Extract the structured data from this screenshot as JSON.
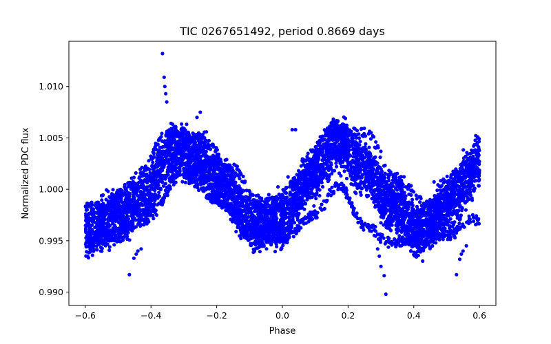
{
  "chart_data": {
    "type": "scatter",
    "title": "TIC 0267651492, period 0.8669 days",
    "xlabel": "Phase",
    "ylabel": "Normalized PDC flux",
    "xlim": [
      -0.65,
      0.65
    ],
    "ylim": [
      0.9887,
      1.0144
    ],
    "xticks": [
      -0.6,
      -0.4,
      -0.2,
      0.0,
      0.2,
      0.4,
      0.6
    ],
    "xtick_labels": [
      "−0.6",
      "−0.4",
      "−0.2",
      "0.0",
      "0.2",
      "0.4",
      "0.6"
    ],
    "yticks": [
      0.99,
      0.995,
      1.0,
      1.005,
      1.01
    ],
    "ytick_labels": [
      "0.990",
      "0.995",
      "1.000",
      "1.005",
      "1.010"
    ],
    "grid": false,
    "marker_color": "#0000ff",
    "series": [
      {
        "name": "main band",
        "center": {
          "x": [
            -0.6,
            -0.5,
            -0.42,
            -0.33,
            -0.25,
            -0.18,
            -0.09,
            0.0,
            0.08,
            0.17,
            0.25,
            0.33,
            0.42,
            0.5,
            0.6
          ],
          "y": [
            0.996,
            0.9972,
            0.9995,
            1.0038,
            1.003,
            1.0003,
            0.9967,
            0.997,
            1.0012,
            1.0045,
            1.0018,
            0.9985,
            0.996,
            0.9985,
            1.0025
          ]
        },
        "spread": 0.0042,
        "count": 5500
      },
      {
        "name": "lower branch",
        "center": {
          "x": [
            -0.6,
            -0.5,
            -0.42,
            -0.3,
            -0.2,
            -0.09,
            0.0,
            0.1,
            0.17,
            0.25,
            0.33,
            0.42,
            0.5,
            0.58
          ],
          "y": [
            0.9952,
            0.9957,
            0.997,
            1.0015,
            0.999,
            0.9955,
            0.9952,
            0.9975,
            1.0005,
            0.9965,
            0.9948,
            0.995,
            0.9955,
            0.997
          ]
        },
        "spread": 0.0008,
        "count": 700
      },
      {
        "name": "upper branch",
        "center": {
          "x": [
            -0.55,
            -0.45,
            -0.35,
            -0.25,
            -0.15,
            -0.05,
            0.05,
            0.15,
            0.25,
            0.35,
            0.45,
            0.55
          ],
          "y": [
            0.9985,
            1.0005,
            1.0055,
            1.005,
            1.002,
            0.998,
            1.001,
            1.006,
            1.0055,
            1.001,
            0.9985,
            1.002
          ]
        },
        "spread": 0.0008,
        "count": 500
      },
      {
        "name": "outliers",
        "x": [
          -0.365,
          -0.36,
          -0.358,
          -0.355,
          -0.352,
          -0.466,
          -0.44,
          -0.445,
          -0.452,
          -0.43,
          0.315,
          0.3,
          0.31,
          0.295,
          0.29,
          0.53,
          0.54,
          0.545,
          0.55,
          0.56,
          -0.25,
          -0.26,
          0.03,
          0.04,
          0.27,
          0.275
        ],
        "y": [
          1.0132,
          1.0109,
          1.01,
          1.0093,
          1.0085,
          0.9917,
          0.994,
          0.9937,
          0.9933,
          0.9942,
          0.9898,
          0.9925,
          0.9916,
          0.9935,
          0.9942,
          0.9917,
          0.9932,
          0.9937,
          0.994,
          0.9945,
          1.0075,
          1.007,
          1.0058,
          1.0058,
          1.0055,
          1.0052
        ]
      }
    ]
  }
}
